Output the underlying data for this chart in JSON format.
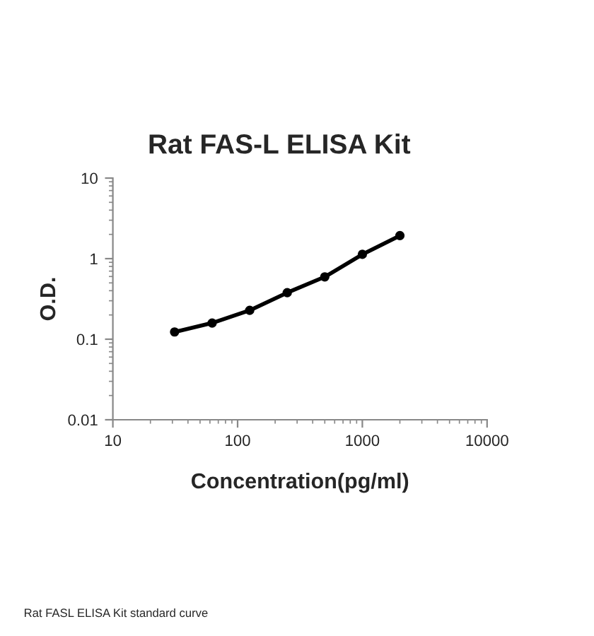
{
  "chart_data": {
    "type": "line",
    "title": "Rat FAS-L ELISA Kit",
    "xlabel": "Concentration(pg/ml)",
    "ylabel": "O.D.",
    "x": [
      31.25,
      62.5,
      125,
      250,
      500,
      1000,
      2000
    ],
    "series": [
      {
        "color": "#000000",
        "values": [
          0.123,
          0.159,
          0.228,
          0.378,
          0.594,
          1.13,
          1.93
        ]
      }
    ],
    "log": "xy",
    "xlim": [
      10,
      10000
    ],
    "xticks": [
      10,
      100,
      1000,
      10000
    ],
    "ylim": [
      0.01,
      10
    ],
    "yticks": [
      0.01,
      0.1,
      1,
      10
    ],
    "marker": "circle",
    "line_style": "solid",
    "grid": false,
    "legend": false,
    "annotations": [
      "Rat FASL ELISA Kit standard curve"
    ]
  }
}
